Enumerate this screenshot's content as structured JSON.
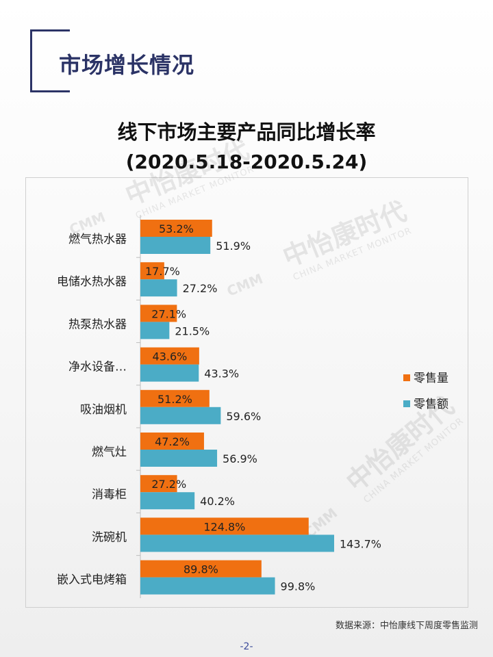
{
  "header": {
    "section_title": "市场增长情况"
  },
  "chart_data": {
    "type": "bar",
    "orientation": "horizontal",
    "title": "线下市场主要产品同比增长率",
    "subtitle": "(2020.5.18-2020.5.24)",
    "categories": [
      "燃气热水器",
      "电储水热水器",
      "热泵热水器",
      "净水设备…",
      "吸油烟机",
      "燃气灶",
      "消毒柜",
      "洗碗机",
      "嵌入式电烤箱"
    ],
    "series": [
      {
        "name": "零售量",
        "color": "#f07011",
        "values": [
          53.2,
          17.7,
          27.1,
          43.6,
          51.2,
          47.2,
          27.2,
          124.8,
          89.8
        ]
      },
      {
        "name": "零售额",
        "color": "#4bacc6",
        "values": [
          51.9,
          27.2,
          21.5,
          43.3,
          59.6,
          56.9,
          40.2,
          143.7,
          99.8
        ]
      }
    ],
    "data_labels": {
      "零售量": [
        "53.2%",
        "17.7%",
        "27.1%",
        "43.6%",
        "51.2%",
        "47.2%",
        "27.2%",
        "124.8%",
        "89.8%"
      ],
      "零售额": [
        "51.9%",
        "27.2%",
        "21.5%",
        "43.3%",
        "59.6%",
        "56.9%",
        "40.2%",
        "143.7%",
        "99.8%"
      ]
    },
    "xlim": [
      0,
      160
    ],
    "legend_position": "right",
    "grid": false
  },
  "watermark": {
    "brand": "中怡康时代",
    "brand_en": "CHINA MARKET MONITOR",
    "logo_text": "CMM"
  },
  "footer": {
    "source": "数据来源：中怡康线下周度零售监测",
    "page": "-2-"
  }
}
